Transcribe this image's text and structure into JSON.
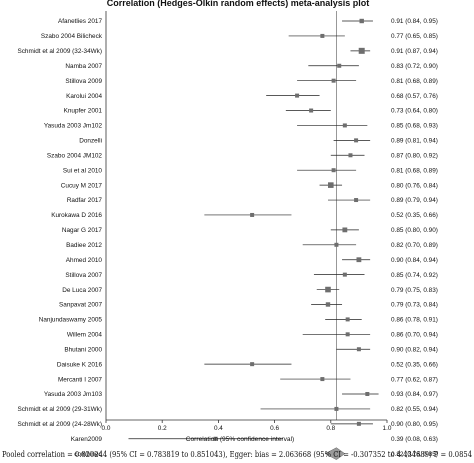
{
  "chart_data": {
    "type": "forest",
    "title": "Correlation (Hedges-Olkin random effects) meta-analysis plot",
    "xlabel": "Correlation (95% confidence interval)",
    "xlim": [
      0,
      1
    ],
    "xticks": [
      "0.0",
      "0.2",
      "0.4",
      "0.6",
      "0.8",
      "1.0"
    ],
    "studies": [
      {
        "name": "Afanetlies 2017",
        "r": 0.91,
        "lo": 0.84,
        "hi": 0.95,
        "label": "0.91 (0.84, 0.95)"
      },
      {
        "name": "Szabo  2004  Bilicheck",
        "r": 0.77,
        "lo": 0.65,
        "hi": 0.85,
        "label": "0.77 (0.65, 0.85)"
      },
      {
        "name": "Schmidt et al 2009 (32-34Wk)",
        "r": 0.91,
        "lo": 0.87,
        "hi": 0.94,
        "label": "0.91 (0.87, 0.94)"
      },
      {
        "name": "Namba 2007",
        "r": 0.83,
        "lo": 0.72,
        "hi": 0.9,
        "label": "0.83 (0.72, 0.90)"
      },
      {
        "name": "Stillova 2009",
        "r": 0.81,
        "lo": 0.68,
        "hi": 0.89,
        "label": "0.81 (0.68, 0.89)"
      },
      {
        "name": "Karolui 2004",
        "r": 0.68,
        "lo": 0.57,
        "hi": 0.76,
        "label": "0.68 (0.57, 0.76)"
      },
      {
        "name": "Knupfer 2001",
        "r": 0.73,
        "lo": 0.64,
        "hi": 0.8,
        "label": "0.73 (0.64, 0.80)"
      },
      {
        "name": "Yasuda 2003 Jm102",
        "r": 0.85,
        "lo": 0.68,
        "hi": 0.93,
        "label": "0.85 (0.68, 0.93)"
      },
      {
        "name": "Donzelli",
        "r": 0.89,
        "lo": 0.81,
        "hi": 0.94,
        "label": "0.89 (0.81, 0.94)"
      },
      {
        "name": "Szabo  2004  JM102",
        "r": 0.87,
        "lo": 0.8,
        "hi": 0.92,
        "label": "0.87 (0.80, 0.92)"
      },
      {
        "name": "Sui et al 2010",
        "r": 0.81,
        "lo": 0.68,
        "hi": 0.89,
        "label": "0.81 (0.68, 0.89)"
      },
      {
        "name": "Cucuy M 2017",
        "r": 0.8,
        "lo": 0.76,
        "hi": 0.84,
        "label": "0.80 (0.76, 0.84)"
      },
      {
        "name": "Radfar 2017",
        "r": 0.89,
        "lo": 0.79,
        "hi": 0.94,
        "label": "0.89 (0.79, 0.94)"
      },
      {
        "name": "Kurokawa D 2016",
        "r": 0.52,
        "lo": 0.35,
        "hi": 0.66,
        "label": "0.52 (0.35, 0.66)"
      },
      {
        "name": "Nagar G 2017",
        "r": 0.85,
        "lo": 0.8,
        "hi": 0.9,
        "label": "0.85 (0.80, 0.90)"
      },
      {
        "name": "Badiee 2012",
        "r": 0.82,
        "lo": 0.7,
        "hi": 0.89,
        "label": "0.82 (0.70, 0.89)"
      },
      {
        "name": "Ahmed 2010",
        "r": 0.9,
        "lo": 0.84,
        "hi": 0.94,
        "label": "0.90 (0.84, 0.94)"
      },
      {
        "name": "Stillova 2007",
        "r": 0.85,
        "lo": 0.74,
        "hi": 0.92,
        "label": "0.85 (0.74, 0.92)"
      },
      {
        "name": "De Luca 2007",
        "r": 0.79,
        "lo": 0.75,
        "hi": 0.83,
        "label": "0.79 (0.75, 0.83)"
      },
      {
        "name": "Sanpavat 2007",
        "r": 0.79,
        "lo": 0.73,
        "hi": 0.84,
        "label": "0.79 (0.73, 0.84)"
      },
      {
        "name": "Nanjundaswamy 2005",
        "r": 0.86,
        "lo": 0.78,
        "hi": 0.91,
        "label": "0.86 (0.78, 0.91)"
      },
      {
        "name": "Willem 2004",
        "r": 0.86,
        "lo": 0.7,
        "hi": 0.94,
        "label": "0.86 (0.70, 0.94)"
      },
      {
        "name": "Bhutani 2000",
        "r": 0.9,
        "lo": 0.82,
        "hi": 0.94,
        "label": "0.90 (0.82, 0.94)"
      },
      {
        "name": "Daisuke K 2016",
        "r": 0.52,
        "lo": 0.35,
        "hi": 0.66,
        "label": "0.52 (0.35, 0.66)"
      },
      {
        "name": "Mercanti I 2007",
        "r": 0.77,
        "lo": 0.62,
        "hi": 0.87,
        "label": "0.77 (0.62, 0.87)"
      },
      {
        "name": "Yasuda 2003 Jm103",
        "r": 0.93,
        "lo": 0.84,
        "hi": 0.97,
        "label": "0.93 (0.84, 0.97)"
      },
      {
        "name": "Schmidt et al 2009 (29-31Wk)",
        "r": 0.82,
        "lo": 0.55,
        "hi": 0.94,
        "label": "0.82 (0.55, 0.94)"
      },
      {
        "name": "Schmidt et al 2009 (24-28Wk)",
        "r": 0.9,
        "lo": 0.8,
        "hi": 0.95,
        "label": "0.90 (0.80, 0.95)"
      },
      {
        "name": "Karen2009",
        "r": 0.39,
        "lo": 0.08,
        "hi": 0.63,
        "label": "0.39 (0.08, 0.63)"
      }
    ],
    "combined": {
      "name": "combined",
      "r": 0.82,
      "lo": 0.78,
      "hi": 0.85,
      "label": "0.82 (0.78, 0.85)"
    },
    "footnote": "Pooled correlation = 0.820244 (95% CI = 0.783819 to 0.851043), Egger: bias = 2.063668 (95% CI = -0.307352 to 4.434689)  P = 0.0854",
    "colors": {
      "marker": "#6e6e6e",
      "line": "#222222",
      "diamond": "#9a9a9a",
      "text": "#111111"
    }
  }
}
